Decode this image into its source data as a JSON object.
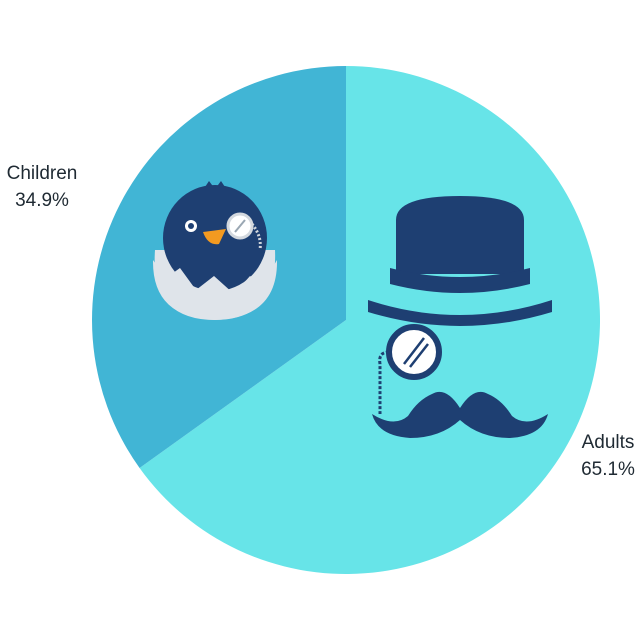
{
  "chart_data": {
    "type": "pie",
    "start_angle_deg": 0,
    "direction": "clockwise",
    "slices": [
      {
        "label": "Adults",
        "value": 65.1,
        "value_label": "65.1%",
        "color": "#67e4e8",
        "icon": "gentleman-icon"
      },
      {
        "label": "Children",
        "value": 34.9,
        "value_label": "34.9%",
        "color": "#41b5d5",
        "icon": "hatching-chick-icon"
      }
    ]
  }
}
